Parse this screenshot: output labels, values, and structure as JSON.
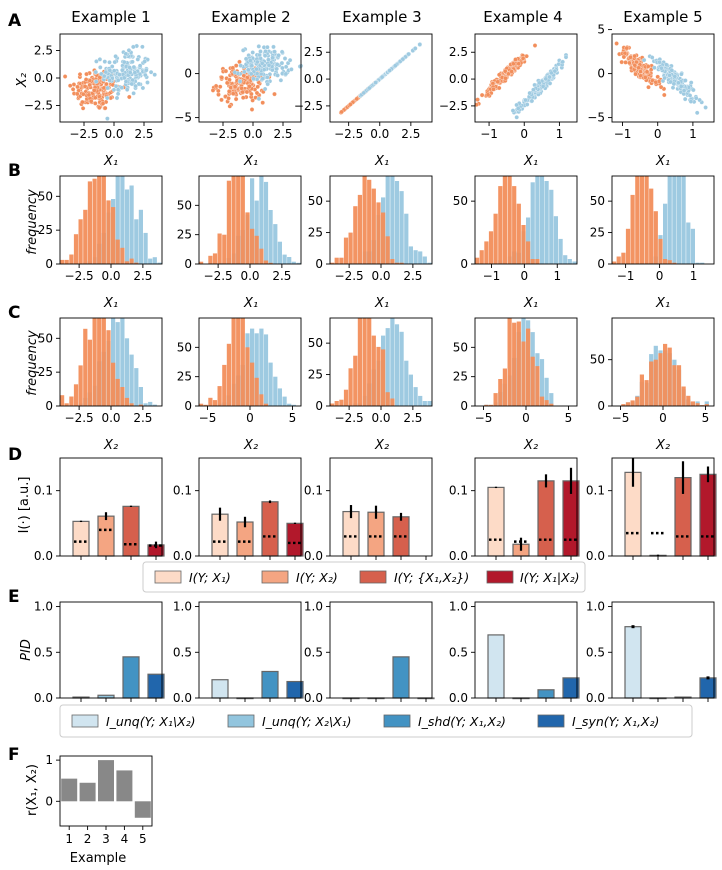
{
  "chart_data": {
    "type": "multi-panel",
    "colors": {
      "orange": "#f28e5b",
      "blue": "#9ecae1",
      "mi": [
        "#fddbc7",
        "#f4a582",
        "#d6604d",
        "#b2182b"
      ],
      "pid": [
        "#d1e5f0",
        "#92c5de",
        "#4393c3",
        "#2166ac"
      ],
      "corr": "#888888",
      "edge": "#666666",
      "black": "#000000"
    },
    "panel_letters": [
      "A",
      "B",
      "C",
      "D",
      "E",
      "F"
    ],
    "examples": [
      "Example 1",
      "Example 2",
      "Example 3",
      "Example 4",
      "Example 5"
    ],
    "scatter": {
      "title_row": "A",
      "xlabel": "X₁",
      "ylabel": "X₂",
      "items": [
        {
          "type": "scatter",
          "orange_center": [
            -1.5,
            -1.0
          ],
          "orange_spread": [
            1.0,
            1.0
          ],
          "orange_corr": 0.0,
          "blue_center": [
            1.0,
            0.5
          ],
          "blue_spread": [
            1.0,
            1.0
          ],
          "blue_corr": 0.0,
          "xlim": [
            -4.5,
            4
          ],
          "ylim": [
            -4,
            4
          ],
          "xticks": [
            -2.5,
            0.0,
            2.5
          ],
          "yticks": [
            -2.5,
            0.0,
            2.5
          ],
          "xtick_labels": [
            "−2.5",
            "0.0",
            "2.5"
          ],
          "ytick_labels": [
            "−2.5",
            "0.0",
            "2.5"
          ]
        },
        {
          "type": "scatter",
          "orange_center": [
            -1.0,
            -1.2
          ],
          "orange_spread": [
            1.0,
            1.0
          ],
          "orange_corr": 0.0,
          "blue_center": [
            1.0,
            1.0
          ],
          "blue_spread": [
            1.0,
            1.0
          ],
          "blue_corr": 0.0,
          "xlim": [
            -4.5,
            4
          ],
          "ylim": [
            -5.5,
            4.5
          ],
          "xticks": [
            -2.5,
            0.0,
            2.5
          ],
          "yticks": [
            -5,
            0
          ],
          "xtick_labels": [
            "−2.5",
            "0.0",
            "2.5"
          ],
          "ytick_labels": [
            "−5",
            "0"
          ]
        },
        {
          "type": "scatter",
          "orange_center": [
            -1.2,
            -1.2
          ],
          "orange_spread": [
            0.8,
            0.8
          ],
          "orange_corr": 1.0,
          "blue_center": [
            1.0,
            1.0
          ],
          "blue_spread": [
            1.0,
            1.0
          ],
          "blue_corr": 1.0,
          "xlim": [
            -4.0,
            4.2
          ],
          "ylim": [
            -4.0,
            4.2
          ],
          "xticks": [
            -2.5,
            0.0,
            2.5
          ],
          "yticks": [
            -2.5,
            0.0,
            2.5
          ],
          "xtick_labels": [
            "−2.5",
            "0.0",
            "2.5"
          ],
          "ytick_labels": [
            "−2.5",
            "0.0",
            "2.5"
          ]
        },
        {
          "type": "scatter",
          "orange_center": [
            -0.5,
            0.5
          ],
          "orange_spread": [
            0.35,
            1.2
          ],
          "orange_corr": 0.97,
          "blue_center": [
            0.5,
            -0.5
          ],
          "blue_spread": [
            0.35,
            1.2
          ],
          "blue_corr": 0.97,
          "xlim": [
            -1.4,
            1.5
          ],
          "ylim": [
            -4.0,
            4.2
          ],
          "xticks": [
            -1,
            0,
            1
          ],
          "yticks": [
            -2.5,
            0.0,
            2.5
          ],
          "xtick_labels": [
            "−1",
            "0",
            "1"
          ],
          "ytick_labels": [
            "−2.5",
            "0.0",
            "2.5"
          ]
        },
        {
          "type": "scatter",
          "orange_center": [
            -0.5,
            0.7
          ],
          "orange_spread": [
            0.3,
            1.2
          ],
          "orange_corr": -0.9,
          "blue_center": [
            0.5,
            -0.7
          ],
          "blue_spread": [
            0.3,
            1.2
          ],
          "blue_corr": -0.9,
          "xlim": [
            -1.3,
            1.6
          ],
          "ylim": [
            -5.5,
            4.5
          ],
          "xticks": [
            -1,
            0,
            1
          ],
          "yticks": [
            -5,
            0,
            5
          ],
          "xtick_labels": [
            "−1",
            "0",
            "1"
          ],
          "ytick_labels": [
            "−5",
            "0",
            "5"
          ]
        }
      ]
    },
    "hist_x1": {
      "row": "B",
      "xlabel": "X₁",
      "ylabel": "frequency",
      "items": [
        {
          "orange_mean": -1.0,
          "orange_sd": 1.0,
          "blue_mean": 1.0,
          "blue_sd": 1.0,
          "xlim": [
            -4,
            4
          ],
          "ylim": [
            0,
            65
          ],
          "xticks": [
            -2.5,
            0.0,
            2.5
          ],
          "xtick_labels": [
            "−2.5",
            "0.0",
            "2.5"
          ],
          "yticks": [
            0,
            25,
            50
          ],
          "ytick_labels": [
            "0",
            "25",
            "50"
          ]
        },
        {
          "orange_mean": -1.0,
          "orange_sd": 0.9,
          "blue_mean": 0.8,
          "blue_sd": 1.0,
          "xlim": [
            -4,
            4
          ],
          "ylim": [
            0,
            75
          ],
          "xticks": [
            -2.5,
            0.0,
            2.5
          ],
          "xtick_labels": [
            "−2.5",
            "0.0",
            "2.5"
          ],
          "yticks": [
            0,
            25,
            50
          ],
          "ytick_labels": [
            "0",
            "25",
            "50"
          ]
        },
        {
          "orange_mean": -1.1,
          "orange_sd": 0.9,
          "blue_mean": 0.9,
          "blue_sd": 1.0,
          "xlim": [
            -4,
            4
          ],
          "ylim": [
            0,
            70
          ],
          "xticks": [
            -2.5,
            0.0,
            2.5
          ],
          "xtick_labels": [
            "−2.5",
            "0.0",
            "2.5"
          ],
          "yticks": [
            0,
            25,
            50
          ],
          "ytick_labels": [
            "0",
            "25",
            "50"
          ]
        },
        {
          "orange_mean": -0.5,
          "orange_sd": 0.35,
          "blue_mean": 0.5,
          "blue_sd": 0.35,
          "xlim": [
            -1.5,
            1.6
          ],
          "ylim": [
            0,
            70
          ],
          "xticks": [
            -1,
            0,
            1
          ],
          "xtick_labels": [
            "−1",
            "0",
            "1"
          ],
          "yticks": [
            0,
            50
          ],
          "ytick_labels": [
            "0",
            "50"
          ]
        },
        {
          "orange_mean": -0.5,
          "orange_sd": 0.28,
          "blue_mean": 0.5,
          "blue_sd": 0.25,
          "xlim": [
            -1.4,
            1.6
          ],
          "ylim": [
            0,
            70
          ],
          "xticks": [
            -1,
            0,
            1
          ],
          "xtick_labels": [
            "−1",
            "0",
            "1"
          ],
          "yticks": [
            0,
            25,
            50
          ],
          "ytick_labels": [
            "0",
            "25",
            "50"
          ]
        }
      ]
    },
    "hist_x2": {
      "row": "C",
      "xlabel": "X₂",
      "ylabel": "frequency",
      "items": [
        {
          "orange_mean": -1.0,
          "orange_sd": 1.0,
          "blue_mean": 0.5,
          "blue_sd": 1.0,
          "xlim": [
            -4,
            4
          ],
          "ylim": [
            0,
            65
          ],
          "xticks": [
            -2.5,
            0.0,
            2.5
          ],
          "xtick_labels": [
            "−2.5",
            "0.0",
            "2.5"
          ],
          "yticks": [
            0,
            25,
            50
          ],
          "ytick_labels": [
            "0",
            "25",
            "50"
          ]
        },
        {
          "orange_mean": -1.3,
          "orange_sd": 1.3,
          "blue_mean": 0.8,
          "blue_sd": 1.5,
          "xlim": [
            -6,
            6
          ],
          "ylim": [
            0,
            75
          ],
          "xticks": [
            -5,
            0,
            5
          ],
          "xtick_labels": [
            "−5",
            "0",
            "5"
          ],
          "yticks": [
            0,
            25,
            50
          ],
          "ytick_labels": [
            "0",
            "25",
            "50"
          ]
        },
        {
          "orange_mean": -1.1,
          "orange_sd": 0.9,
          "blue_mean": 0.9,
          "blue_sd": 1.0,
          "xlim": [
            -4,
            4
          ],
          "ylim": [
            0,
            70
          ],
          "xticks": [
            -2.5,
            0.0,
            2.5
          ],
          "xtick_labels": [
            "−2.5",
            "0.0",
            "2.5"
          ],
          "yticks": [
            0,
            25,
            50
          ],
          "ytick_labels": [
            "0",
            "25",
            "50"
          ]
        },
        {
          "orange_mean": -0.7,
          "orange_sd": 1.4,
          "blue_mean": 0.0,
          "blue_sd": 1.5,
          "xlim": [
            -6,
            6
          ],
          "ylim": [
            0,
            75
          ],
          "xticks": [
            -5,
            0,
            5
          ],
          "xtick_labels": [
            "−5",
            "0",
            "5"
          ],
          "yticks": [
            0,
            25,
            50
          ],
          "ytick_labels": [
            "0",
            "25",
            "50"
          ]
        },
        {
          "orange_mean": 0.0,
          "orange_sd": 1.6,
          "blue_mean": 0.0,
          "blue_sd": 1.6,
          "xlim": [
            -6,
            6
          ],
          "ylim": [
            0,
            95
          ],
          "xticks": [
            -5,
            0,
            5
          ],
          "xtick_labels": [
            "−5",
            "0",
            "5"
          ],
          "yticks": [
            0,
            50
          ],
          "ytick_labels": [
            "0",
            "50"
          ]
        }
      ]
    },
    "mi": {
      "row": "D",
      "ylabel": "I(·) [a.u.]",
      "legend": [
        "I(Y; X₁)",
        "I(Y; X₂)",
        "I(Y; {X₁,X₂})",
        "I(Y; X₁|X₂)"
      ],
      "items": [
        {
          "values": [
            0.053,
            0.061,
            0.076,
            0.017
          ],
          "err": [
            0.001,
            0.006,
            0.001,
            0.005
          ],
          "null": [
            0.022,
            0.04,
            0.018,
            0.016
          ],
          "ylim": [
            0,
            0.15
          ],
          "yticks": [
            0,
            0.1
          ],
          "ytick_labels": [
            "0.0",
            "0.1"
          ]
        },
        {
          "values": [
            0.064,
            0.052,
            0.083,
            0.05
          ],
          "err": [
            0.01,
            0.008,
            0.002,
            0.001
          ],
          "null": [
            0.022,
            0.022,
            0.03,
            0.02
          ],
          "ylim": [
            0,
            0.15
          ],
          "yticks": [
            0,
            0.1
          ],
          "ytick_labels": [
            "0.0",
            "0.1"
          ]
        },
        {
          "values": [
            0.068,
            0.067,
            0.06,
            0.0
          ],
          "err": [
            0.01,
            0.01,
            0.006,
            0.0
          ],
          "null": [
            0.03,
            0.03,
            0.03,
            0.0
          ],
          "ylim": [
            0,
            0.15
          ],
          "yticks": [
            0,
            0.1
          ],
          "ytick_labels": [
            "0.0",
            "0.1"
          ]
        },
        {
          "values": [
            0.105,
            0.018,
            0.115,
            0.115
          ],
          "err": [
            0.001,
            0.01,
            0.01,
            0.02
          ],
          "null": [
            0.025,
            0.022,
            0.025,
            0.025
          ],
          "ylim": [
            0,
            0.15
          ],
          "yticks": [
            0,
            0.1
          ],
          "ytick_labels": [
            "0.0",
            "0.1"
          ]
        },
        {
          "values": [
            0.128,
            0.001,
            0.12,
            0.125
          ],
          "err": [
            0.022,
            0.001,
            0.025,
            0.012
          ],
          "null": [
            0.035,
            0.035,
            0.03,
            0.03
          ],
          "ylim": [
            0,
            0.15
          ],
          "yticks": [
            0,
            0.1
          ],
          "ytick_labels": [
            "0.0",
            "0.1"
          ]
        }
      ]
    },
    "pid": {
      "row": "E",
      "ylabel": "PID",
      "legend": [
        "I_unq(Y; X₁\\X₂)",
        "I_unq(Y; X₂\\X₁)",
        "I_shd(Y; X₁,X₂)",
        "I_syn(Y; X₁,X₂)"
      ],
      "items": [
        {
          "values": [
            0.01,
            0.03,
            0.45,
            0.26
          ],
          "err": [
            0,
            0,
            0,
            0
          ],
          "ylim": [
            0,
            1.05
          ],
          "yticks": [
            0,
            0.5,
            1.0
          ],
          "ytick_labels": [
            "0.0",
            "0.5",
            "1.0"
          ]
        },
        {
          "values": [
            0.2,
            0.0,
            0.29,
            0.18
          ],
          "err": [
            0,
            0,
            0,
            0
          ]
        },
        {
          "values": [
            0.0,
            0.0,
            0.45,
            0.0
          ],
          "err": [
            0,
            0,
            0,
            0
          ]
        },
        {
          "values": [
            0.69,
            0.0,
            0.09,
            0.22
          ],
          "err": [
            0,
            0,
            0,
            0
          ]
        },
        {
          "values": [
            0.78,
            0.0,
            0.01,
            0.22
          ],
          "err": [
            0.01,
            0,
            0,
            0.01
          ]
        }
      ]
    },
    "correlation": {
      "row": "F",
      "ylabel": "r(X₁, X₂)",
      "xlabel": "Example",
      "categories": [
        "1",
        "2",
        "3",
        "4",
        "5"
      ],
      "values": [
        0.55,
        0.45,
        1.0,
        0.75,
        -0.4
      ],
      "ylim": [
        -0.6,
        1.1
      ],
      "yticks": [
        0,
        1
      ],
      "ytick_labels": [
        "0",
        "1"
      ]
    }
  }
}
